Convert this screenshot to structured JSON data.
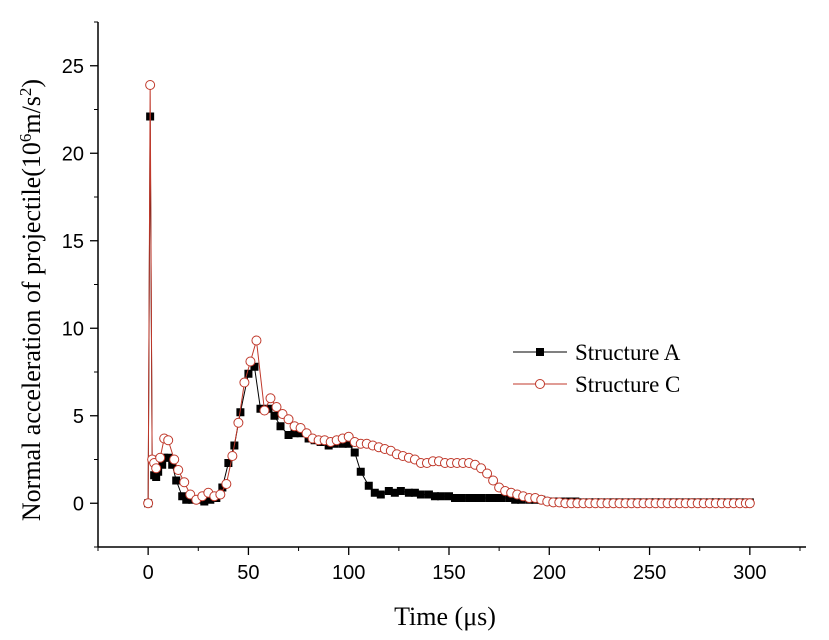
{
  "chart_data": {
    "type": "line",
    "xlabel": "Time (μs)",
    "ylabel_main": "Normal acceleration of projectile(10",
    "ylabel_sup1": "6",
    "ylabel_mid": "m/s",
    "ylabel_sup2": "2",
    "ylabel_end": ")",
    "xlim": [
      -25,
      328
    ],
    "ylim": [
      -2.5,
      27.5
    ],
    "xticks": [
      0,
      50,
      100,
      150,
      200,
      250,
      300
    ],
    "yticks": [
      0,
      5,
      10,
      15,
      20,
      25
    ],
    "xtick_labels": [
      "0",
      "50",
      "100",
      "150",
      "200",
      "250",
      "300"
    ],
    "ytick_labels": [
      "0",
      "5",
      "10",
      "15",
      "20",
      "25"
    ],
    "legend_position": "right-middle",
    "series": [
      {
        "name": "Structure A",
        "color": "#000000",
        "marker": "filled-square",
        "x": [
          0,
          1,
          2,
          3,
          4,
          5,
          7,
          8,
          10,
          12,
          14,
          17,
          19,
          22,
          25,
          28,
          31,
          34,
          37,
          40,
          43,
          46,
          50,
          53,
          56,
          60,
          63,
          66,
          70,
          73,
          76,
          80,
          83,
          86,
          90,
          93,
          97,
          100,
          103,
          106,
          110,
          113,
          116,
          120,
          123,
          126,
          130,
          133,
          136,
          140,
          143,
          146,
          150,
          153,
          156,
          160,
          163,
          166,
          170,
          173,
          176,
          180,
          183,
          186,
          190,
          193,
          196,
          200,
          203,
          206,
          210,
          213,
          216,
          220,
          223,
          226,
          230,
          233,
          236,
          240,
          243,
          246,
          250,
          253,
          256,
          260,
          263,
          266,
          270,
          273,
          276,
          280,
          283,
          286,
          290,
          293,
          296,
          300
        ],
        "y": [
          0,
          22.1,
          2.5,
          1.6,
          1.5,
          1.8,
          2.2,
          2.6,
          2.6,
          2.2,
          1.3,
          0.4,
          0.2,
          0.2,
          0.2,
          0.1,
          0.2,
          0.3,
          0.9,
          2.3,
          3.3,
          5.2,
          7.4,
          7.8,
          5.4,
          5.4,
          5.0,
          4.4,
          3.9,
          4.0,
          4.0,
          3.7,
          3.6,
          3.5,
          3.3,
          3.4,
          3.4,
          3.4,
          2.9,
          1.8,
          1.0,
          0.6,
          0.5,
          0.7,
          0.6,
          0.7,
          0.6,
          0.6,
          0.5,
          0.5,
          0.4,
          0.4,
          0.4,
          0.3,
          0.3,
          0.3,
          0.3,
          0.3,
          0.3,
          0.3,
          0.3,
          0.3,
          0.2,
          0.2,
          0.2,
          0.2,
          0.2,
          0.1,
          0.1,
          0.1,
          0.1,
          0.1,
          0.05,
          0.05,
          0.05,
          0.05,
          0.05,
          0.05,
          0.05,
          0.05,
          0.05,
          0.05,
          0.05,
          0.05,
          0.05,
          0.05,
          0.05,
          0.05,
          0.05,
          0.05,
          0.05,
          0.05,
          0.05,
          0.05,
          0.05,
          0.05,
          0.05,
          0.05
        ]
      },
      {
        "name": "Structure C",
        "color": "#c0392b",
        "marker": "open-circle",
        "x": [
          0,
          1,
          2,
          3,
          4,
          6,
          8,
          10,
          13,
          15,
          18,
          21,
          24,
          27,
          30,
          33,
          36,
          39,
          42,
          45,
          48,
          51,
          54,
          58,
          61,
          64,
          67,
          70,
          73,
          76,
          79,
          82,
          85,
          88,
          91,
          94,
          97,
          100,
          103,
          106,
          109,
          112,
          115,
          118,
          121,
          124,
          127,
          130,
          133,
          136,
          139,
          142,
          145,
          148,
          151,
          154,
          157,
          160,
          163,
          166,
          169,
          172,
          175,
          178,
          181,
          184,
          187,
          190,
          193,
          196,
          199,
          202,
          205,
          208,
          211,
          214,
          217,
          220,
          223,
          226,
          229,
          232,
          235,
          238,
          241,
          244,
          247,
          250,
          253,
          256,
          259,
          262,
          265,
          268,
          271,
          274,
          277,
          280,
          283,
          286,
          289,
          292,
          295,
          298,
          300
        ],
        "y": [
          0,
          23.9,
          2.5,
          2.3,
          2.0,
          2.6,
          3.7,
          3.6,
          2.5,
          1.9,
          1.2,
          0.5,
          0.2,
          0.4,
          0.6,
          0.4,
          0.5,
          1.1,
          2.7,
          4.6,
          6.9,
          8.1,
          9.3,
          5.3,
          6.0,
          5.5,
          5.1,
          4.8,
          4.4,
          4.3,
          4.0,
          3.7,
          3.6,
          3.6,
          3.5,
          3.6,
          3.7,
          3.8,
          3.5,
          3.4,
          3.4,
          3.3,
          3.2,
          3.1,
          3.0,
          2.8,
          2.7,
          2.6,
          2.5,
          2.3,
          2.3,
          2.4,
          2.4,
          2.3,
          2.3,
          2.3,
          2.3,
          2.3,
          2.2,
          2.0,
          1.7,
          1.3,
          0.9,
          0.7,
          0.6,
          0.5,
          0.4,
          0.3,
          0.3,
          0.2,
          0.1,
          0.05,
          0.05,
          0,
          0,
          0,
          0,
          0,
          0,
          0,
          0,
          0,
          0,
          0,
          0,
          0,
          0,
          0,
          0,
          0,
          0,
          0,
          0,
          0,
          0,
          0,
          0,
          0,
          0,
          0,
          0,
          0,
          0,
          0,
          0
        ]
      }
    ]
  }
}
